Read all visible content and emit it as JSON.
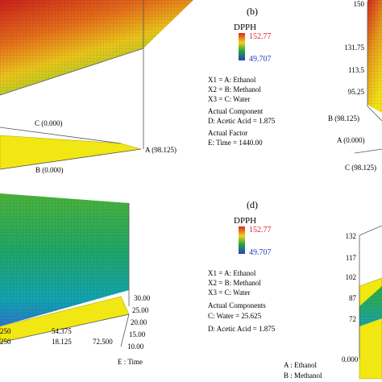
{
  "chart_data": [
    {
      "type": "surface",
      "panel": "a",
      "axis_labels": [
        "C (0.000)",
        "B (0.000)",
        "A (98.125)"
      ],
      "description_of_marks": "3D response surface, yellow-green-red gradient"
    },
    {
      "type": "legend_panel",
      "panel_label": "(b)",
      "response": "DPPH",
      "color_max": "152.77",
      "color_min": "49.707",
      "mapping": [
        "X1 = A: Ethanol",
        "X2 = B: Methanol",
        "X3 = C: Water"
      ],
      "actual_component_heading": "Actual Component",
      "actual_component": [
        "D: Acetic Acid = 1.875"
      ],
      "actual_factor_heading": "Actual Factor",
      "actual_factor": [
        "E: Time = 1440.00"
      ]
    },
    {
      "type": "surface",
      "panel": "c",
      "z_ticks": [
        "150",
        "131.75",
        "113.5",
        "95.25"
      ],
      "axis_labels": [
        "B (98.125)",
        "A (0.000)",
        "C (98.125)"
      ]
    },
    {
      "type": "surface",
      "panel": "d-left",
      "y_ticks": [
        "30.00",
        "25.00",
        "20.00",
        "15.00",
        "10.00"
      ],
      "x_ticks": [
        "54.375",
        "18.125",
        "72.500",
        "250",
        "250"
      ],
      "axis_labels": [
        "E : Time"
      ]
    },
    {
      "type": "legend_panel",
      "panel_label": "(d)",
      "response": "DPPH",
      "color_max": "152.77",
      "color_min": "49.707",
      "mapping": [
        "X1 = A: Ethanol",
        "X2 = B: Methanol",
        "X3 = C: Water"
      ],
      "actual_component_heading": "Actual Components",
      "actual_component": [
        "C: Water = 25.625",
        "D: Acetic Acid = 1.875"
      ]
    },
    {
      "type": "surface",
      "panel": "d-right",
      "z_ticks": [
        "132",
        "117",
        "102",
        "87",
        "72"
      ],
      "x_ticks": [
        "0.000"
      ],
      "axis_labels": [
        "A : Ethanol",
        "B : Methanol"
      ]
    }
  ],
  "colors": {
    "red": "#d7261e",
    "green": "#17a33d",
    "yellow": "#f2ea0c",
    "blue": "#2a3fc1",
    "frame": "#5a5a5a"
  }
}
